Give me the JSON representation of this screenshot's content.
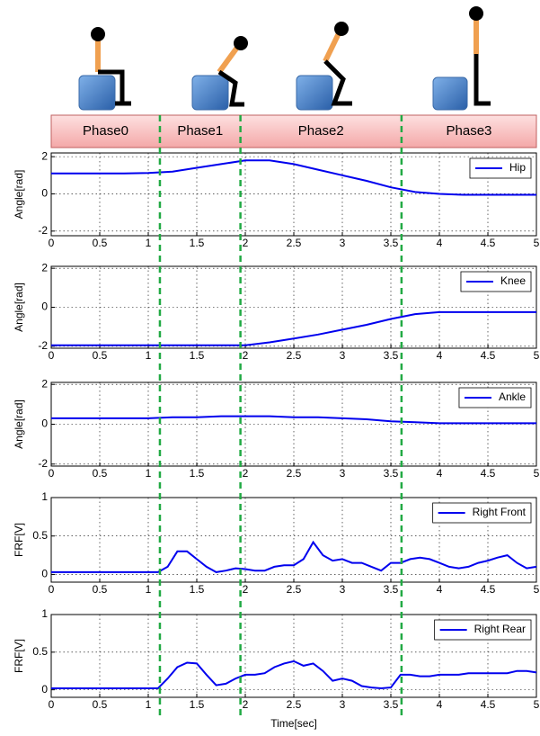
{
  "phases": {
    "labels": [
      "Phase0",
      "Phase1",
      "Phase2",
      "Phase3"
    ],
    "boundaries": [
      1.12,
      1.95,
      3.61
    ],
    "color": "#22aa44"
  },
  "chart_data": [
    {
      "type": "line",
      "ylabel": "Angle[rad]",
      "legend": "upper right",
      "grid": true,
      "x": [
        0,
        0.25,
        0.5,
        0.75,
        1,
        1.25,
        1.5,
        1.75,
        2,
        2.25,
        2.5,
        2.75,
        3,
        3.25,
        3.5,
        3.75,
        4,
        4.25,
        4.5,
        4.75,
        5
      ],
      "series": [
        {
          "name": "Hip",
          "color": "#0000ee",
          "values": [
            1.1,
            1.1,
            1.1,
            1.1,
            1.12,
            1.2,
            1.4,
            1.6,
            1.8,
            1.8,
            1.6,
            1.3,
            1.0,
            0.7,
            0.35,
            0.1,
            0.0,
            -0.05,
            -0.05,
            -0.05,
            -0.05
          ]
        }
      ],
      "xlim": [
        0,
        5
      ],
      "xticks": [
        0,
        0.5,
        1,
        1.5,
        2,
        2.5,
        3,
        3.5,
        4,
        4.5,
        5
      ],
      "ylim": [
        -2.25,
        2.2
      ],
      "yticks": [
        -2,
        0,
        2
      ]
    },
    {
      "type": "line",
      "ylabel": "Angle[rad]",
      "legend": "upper right",
      "grid": true,
      "x": [
        0,
        0.25,
        0.5,
        0.75,
        1,
        1.25,
        1.5,
        1.75,
        2,
        2.25,
        2.5,
        2.75,
        3,
        3.25,
        3.5,
        3.75,
        4,
        4.25,
        4.5,
        4.75,
        5
      ],
      "series": [
        {
          "name": "Knee",
          "color": "#0000ee",
          "values": [
            -1.95,
            -1.95,
            -1.95,
            -1.95,
            -1.95,
            -1.95,
            -1.95,
            -1.95,
            -1.95,
            -1.8,
            -1.6,
            -1.4,
            -1.15,
            -0.9,
            -0.6,
            -0.35,
            -0.25,
            -0.25,
            -0.25,
            -0.25,
            -0.25
          ]
        }
      ],
      "xlim": [
        0,
        5
      ],
      "xticks": [
        0,
        0.5,
        1,
        1.5,
        2,
        2.5,
        3,
        3.5,
        4,
        4.5,
        5
      ],
      "ylim": [
        -2.1,
        2.1
      ],
      "yticks": [
        -2,
        0,
        2
      ]
    },
    {
      "type": "line",
      "ylabel": "Angle[rad]",
      "legend": "upper right",
      "grid": true,
      "x": [
        0,
        0.25,
        0.5,
        0.75,
        1,
        1.25,
        1.5,
        1.75,
        2,
        2.25,
        2.5,
        2.75,
        3,
        3.25,
        3.5,
        3.75,
        4,
        4.25,
        4.5,
        4.75,
        5
      ],
      "series": [
        {
          "name": "Ankle",
          "color": "#0000ee",
          "values": [
            0.3,
            0.3,
            0.3,
            0.3,
            0.3,
            0.35,
            0.35,
            0.4,
            0.4,
            0.4,
            0.35,
            0.35,
            0.3,
            0.25,
            0.15,
            0.1,
            0.05,
            0.05,
            0.05,
            0.05,
            0.05
          ]
        }
      ],
      "xlim": [
        0,
        5
      ],
      "xticks": [
        0,
        0.5,
        1,
        1.5,
        2,
        2.5,
        3,
        3.5,
        4,
        4.5,
        5
      ],
      "ylim": [
        -2.1,
        2.1
      ],
      "yticks": [
        -2,
        0,
        2
      ]
    },
    {
      "type": "line",
      "ylabel": "FRF[V]",
      "legend": "upper right",
      "grid": true,
      "x": [
        0,
        0.1,
        0.2,
        0.3,
        0.4,
        0.5,
        0.6,
        0.7,
        0.8,
        0.9,
        1,
        1.1,
        1.2,
        1.3,
        1.4,
        1.5,
        1.6,
        1.7,
        1.8,
        1.9,
        2,
        2.1,
        2.2,
        2.3,
        2.4,
        2.5,
        2.6,
        2.7,
        2.8,
        2.9,
        3,
        3.1,
        3.2,
        3.3,
        3.4,
        3.5,
        3.6,
        3.7,
        3.8,
        3.9,
        4,
        4.1,
        4.2,
        4.3,
        4.4,
        4.5,
        4.6,
        4.7,
        4.8,
        4.9,
        5
      ],
      "series": [
        {
          "name": "Right Front",
          "color": "#0000ee",
          "values": [
            0.03,
            0.03,
            0.03,
            0.03,
            0.03,
            0.03,
            0.03,
            0.03,
            0.03,
            0.03,
            0.03,
            0.03,
            0.1,
            0.3,
            0.3,
            0.2,
            0.1,
            0.03,
            0.05,
            0.08,
            0.07,
            0.05,
            0.05,
            0.1,
            0.12,
            0.12,
            0.2,
            0.42,
            0.25,
            0.18,
            0.2,
            0.15,
            0.15,
            0.1,
            0.05,
            0.15,
            0.15,
            0.2,
            0.22,
            0.2,
            0.15,
            0.1,
            0.08,
            0.1,
            0.15,
            0.18,
            0.22,
            0.25,
            0.15,
            0.08,
            0.1
          ]
        }
      ],
      "xlim": [
        0,
        5
      ],
      "xticks": [
        0,
        0.5,
        1,
        1.5,
        2,
        2.5,
        3,
        3.5,
        4,
        4.5,
        5
      ],
      "ylim": [
        -0.1,
        1
      ],
      "yticks": [
        0,
        0.5,
        1
      ]
    },
    {
      "type": "line",
      "ylabel": "FRF[V]",
      "xlabel": "Time[sec]",
      "legend": "upper right",
      "grid": true,
      "x": [
        0,
        0.1,
        0.2,
        0.3,
        0.4,
        0.5,
        0.6,
        0.7,
        0.8,
        0.9,
        1,
        1.1,
        1.2,
        1.3,
        1.4,
        1.5,
        1.6,
        1.7,
        1.8,
        1.9,
        2,
        2.1,
        2.2,
        2.3,
        2.4,
        2.5,
        2.6,
        2.7,
        2.8,
        2.9,
        3,
        3.1,
        3.2,
        3.3,
        3.4,
        3.5,
        3.6,
        3.7,
        3.8,
        3.9,
        4,
        4.1,
        4.2,
        4.3,
        4.4,
        4.5,
        4.6,
        4.7,
        4.8,
        4.9,
        5
      ],
      "series": [
        {
          "name": "Right Rear",
          "color": "#0000ee",
          "values": [
            0.02,
            0.02,
            0.02,
            0.02,
            0.02,
            0.02,
            0.02,
            0.02,
            0.02,
            0.02,
            0.02,
            0.02,
            0.15,
            0.3,
            0.36,
            0.35,
            0.2,
            0.06,
            0.08,
            0.15,
            0.2,
            0.2,
            0.22,
            0.3,
            0.35,
            0.38,
            0.32,
            0.35,
            0.25,
            0.12,
            0.15,
            0.12,
            0.05,
            0.03,
            0.02,
            0.03,
            0.2,
            0.2,
            0.18,
            0.18,
            0.2,
            0.2,
            0.2,
            0.22,
            0.22,
            0.22,
            0.22,
            0.22,
            0.25,
            0.25,
            0.23
          ]
        }
      ],
      "xlim": [
        0,
        5
      ],
      "xticks": [
        0,
        0.5,
        1,
        1.5,
        2,
        2.5,
        3,
        3.5,
        4,
        4.5,
        5
      ],
      "ylim": [
        -0.1,
        1
      ],
      "yticks": [
        0,
        0.5,
        1
      ]
    }
  ]
}
